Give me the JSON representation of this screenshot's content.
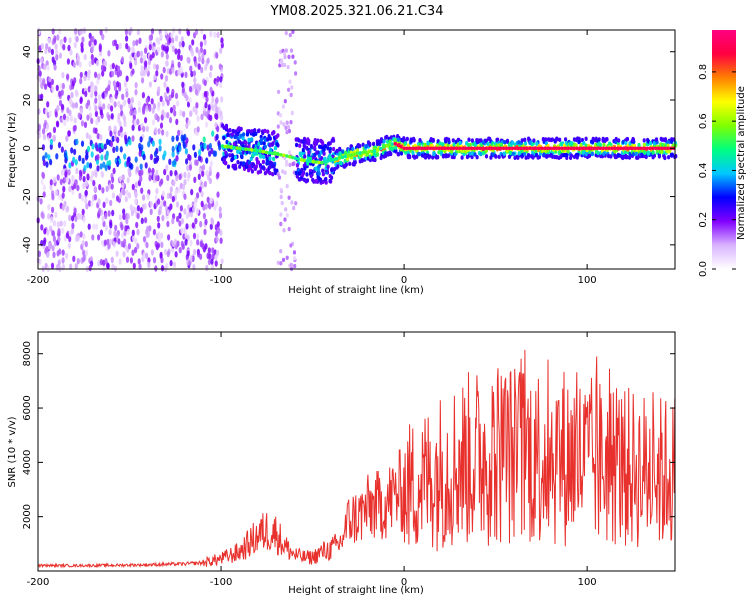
{
  "figure_title": "YM08.2025.321.06.21.C34",
  "chart_data": [
    {
      "type": "heatmap",
      "name": "spectrogram",
      "title": "YM08.2025.321.06.21.C34",
      "xlabel": "Height of straight line (km)",
      "ylabel": "Frequency (Hz)",
      "xlim": [
        -200,
        148
      ],
      "ylim": [
        -50,
        49
      ],
      "xticks": [
        -200,
        -100,
        0,
        100
      ],
      "xtick_labels": [
        "-200",
        "-100",
        "0",
        "100"
      ],
      "yticks": [
        -40,
        -20,
        0,
        20,
        40
      ],
      "ytick_labels": [
        "-40",
        "-20",
        "0",
        "20",
        "40"
      ],
      "ridge": {
        "description": "dominant frequency ridge (Hz) vs height (km)",
        "x": [
          -200,
          -180,
          -160,
          -140,
          -120,
          -100,
          -80,
          -65,
          -55,
          -45,
          -35,
          -25,
          -15,
          -10,
          -5,
          0,
          20,
          50,
          80,
          110,
          148
        ],
        "y": [
          -3,
          -3,
          -2,
          -2,
          0,
          1,
          -1,
          -3,
          -5,
          -6,
          -4,
          -2,
          -1,
          1,
          2,
          0,
          0,
          0,
          0,
          0,
          0
        ]
      },
      "colorbar": {
        "label": "Normalized spectral amplitude",
        "ticks": [
          0.0,
          0.2,
          0.4,
          0.6,
          0.8
        ],
        "tick_labels": [
          "0.0",
          "0.2",
          "0.4",
          "0.6",
          "0.8"
        ],
        "range": [
          0,
          0.97
        ],
        "colormap": [
          "#ffffff",
          "#d9b3ff",
          "#8000ff",
          "#0000ff",
          "#00c8ff",
          "#00ff80",
          "#80ff00",
          "#ffff00",
          "#ff8000",
          "#ff0040",
          "#ff0080"
        ]
      }
    },
    {
      "type": "line",
      "name": "snr",
      "xlabel": "Height of straight line (km)",
      "ylabel": "SNR (10 * v/v)",
      "xlim": [
        -200,
        148
      ],
      "ylim": [
        0,
        8800
      ],
      "xticks": [
        -200,
        -100,
        0,
        100
      ],
      "xtick_labels": [
        "-200",
        "-100",
        "0",
        "100"
      ],
      "yticks": [
        2000,
        4000,
        6000,
        8000
      ],
      "ytick_labels": [
        "2000",
        "4000",
        "6000",
        "8000"
      ],
      "color": "#e8302c",
      "series": [
        {
          "name": "SNR",
          "x": [
            -200,
            -180,
            -160,
            -140,
            -120,
            -110,
            -100,
            -90,
            -85,
            -80,
            -75,
            -70,
            -65,
            -60,
            -55,
            -50,
            -45,
            -40,
            -35,
            -30,
            -25,
            -20,
            -15,
            -10,
            -5,
            0,
            10,
            20,
            30,
            40,
            50,
            60,
            70,
            80,
            90,
            100,
            110,
            120,
            130,
            140,
            148
          ],
          "y": [
            200,
            200,
            210,
            230,
            260,
            300,
            450,
            700,
            1000,
            1300,
            1500,
            1400,
            900,
            600,
            500,
            500,
            700,
            800,
            1000,
            1900,
            2000,
            2300,
            2400,
            2500,
            2800,
            3000,
            3300,
            3700,
            4000,
            4200,
            4400,
            4300,
            4300,
            4300,
            4200,
            4000,
            4000,
            3800,
            3700,
            3600,
            3700
          ]
        }
      ]
    }
  ]
}
